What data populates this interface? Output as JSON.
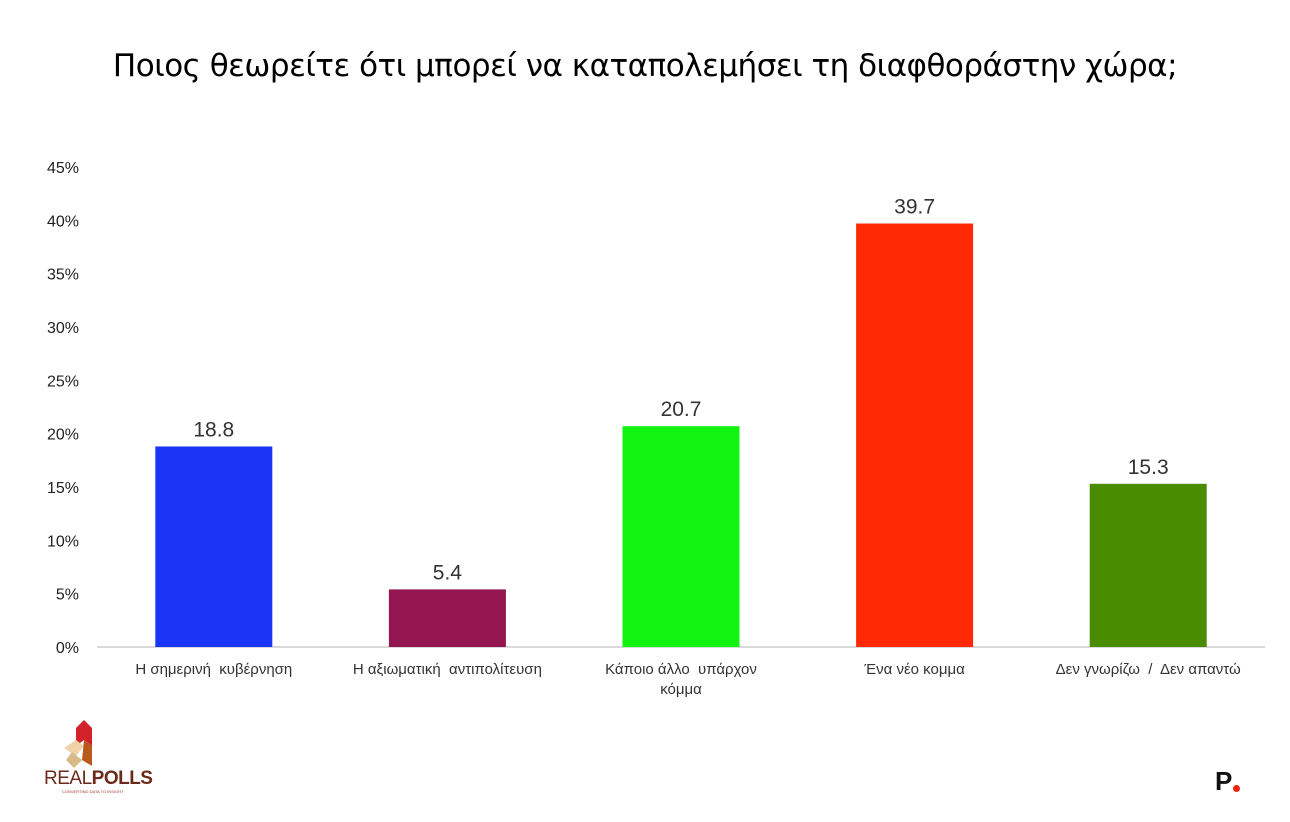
{
  "chart_data": {
    "type": "bar",
    "title": "Ποιος θεωρείτε ότι μπορεί να καταπολεμήσει τη διαφθοράστην χώρα;",
    "categories": [
      [
        "Η σημερινή  κυβέρνηση"
      ],
      [
        "Η αξιωματική  αντιπολίτευση"
      ],
      [
        "Κάποιο άλλο  υπάρχον",
        "κόμμα"
      ],
      [
        "Ένα νέο κομμα"
      ],
      [
        "Δεν γνωρίζω  /  Δεν απαντώ"
      ]
    ],
    "values": [
      18.8,
      5.4,
      20.7,
      39.7,
      15.3
    ],
    "data_labels": [
      "18.8",
      "5.4",
      "20.7",
      "39.7",
      "15.3"
    ],
    "colors": [
      "#1a35f5",
      "#941650",
      "#12f312",
      "#ff2a05",
      "#4a8c00"
    ],
    "ylim": [
      0,
      45
    ],
    "yticks": [
      0,
      5,
      10,
      15,
      20,
      25,
      30,
      35,
      40,
      45
    ],
    "ytick_labels": [
      "0%",
      "5%",
      "10%",
      "15%",
      "20%",
      "25%",
      "30%",
      "35%",
      "40%",
      "45%"
    ],
    "xlabel": "",
    "ylabel": "",
    "grid": false,
    "legend": "none"
  },
  "branding": {
    "logo": "REALPOLLS",
    "logo_tagline": "CONVERTING DATA TO INSIGHT",
    "publisher_mark": "P."
  }
}
